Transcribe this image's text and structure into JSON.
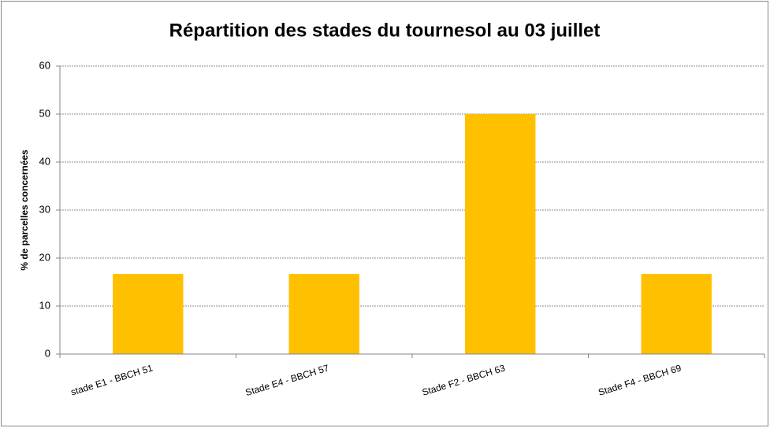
{
  "chart_data": {
    "type": "bar",
    "title": "Répartition des stades du tournesol au 03 juillet",
    "y_label": "% de parcelles concernées",
    "categories": [
      "stade E1 - BBCH 51",
      "Stade E4 - BBCH 57",
      "Stade F2 - BBCH 63",
      "Stade F4 - BBCH 69"
    ],
    "values": [
      16.7,
      16.7,
      50,
      16.7
    ],
    "color": "#ffc000",
    "ylim": [
      0,
      60
    ],
    "yticks": [
      0,
      10,
      20,
      30,
      40,
      50,
      60
    ],
    "grid": true
  }
}
